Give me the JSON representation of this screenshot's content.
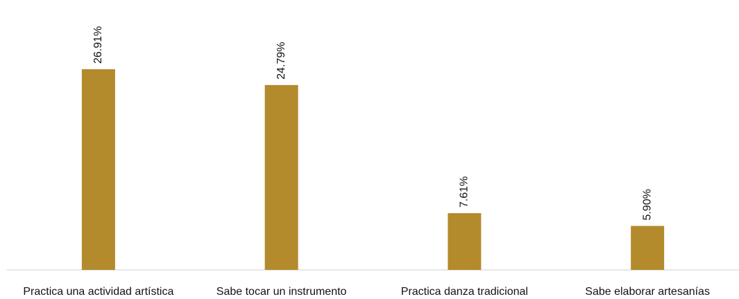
{
  "chart_data": {
    "type": "bar",
    "categories": [
      "Practica una actividad artística",
      "Sabe tocar un instrumento",
      "Practica danza tradicional",
      "Sabe elaborar artesanías"
    ],
    "values": [
      26.91,
      24.79,
      7.61,
      5.9
    ],
    "value_labels": [
      "26.91%",
      "24.79%",
      "7.61%",
      "5.90%"
    ],
    "color": "#b38b2d"
  }
}
